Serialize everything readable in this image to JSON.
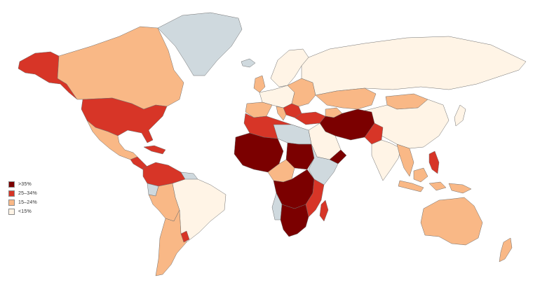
{
  "legend": {
    "items": [
      {
        "label": ">35%",
        "color": "#7b0000"
      },
      {
        "label": "25–34%",
        "color": "#d73527"
      },
      {
        "label": "15–24%",
        "color": "#f9b886"
      },
      {
        "label": "<15%",
        "color": "#fff4e6"
      }
    ]
  },
  "colors": {
    "no_data": "#cfd9de",
    "border": "#6e6e6e",
    "background": "#ffffff"
  }
}
